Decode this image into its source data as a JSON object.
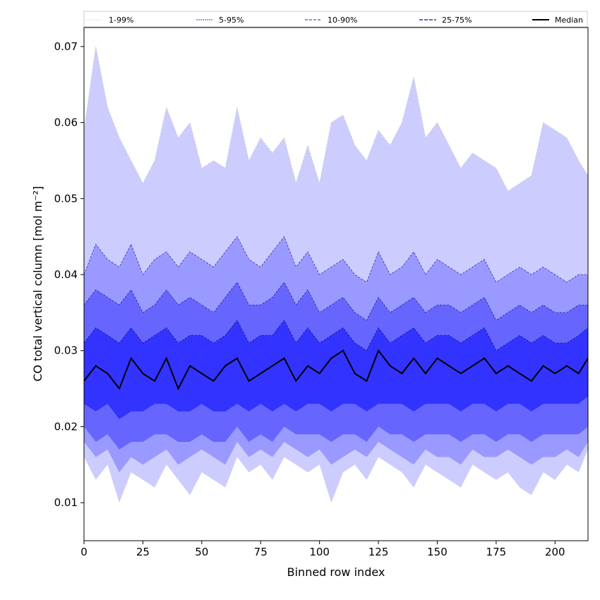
{
  "chart_data": {
    "type": "area",
    "title": "",
    "xlabel": "Binned row index",
    "ylabel": "CO total vertical column [mol m⁻²]",
    "xlim": [
      0,
      214
    ],
    "ylim": [
      0.005,
      0.0725
    ],
    "xticks": [
      0,
      25,
      50,
      75,
      100,
      125,
      150,
      175,
      200
    ],
    "yticks": [
      0.01,
      0.02,
      0.03,
      0.04,
      0.05,
      0.06,
      0.07
    ],
    "xtick_labels": [
      "0",
      "25",
      "50",
      "75",
      "100",
      "125",
      "150",
      "175",
      "200"
    ],
    "ytick_labels": [
      "0.01",
      "0.02",
      "0.03",
      "0.04",
      "0.05",
      "0.06",
      "0.07"
    ],
    "grid": false,
    "legend_position": "top",
    "x": [
      0,
      5,
      10,
      15,
      20,
      25,
      30,
      35,
      40,
      45,
      50,
      55,
      60,
      65,
      70,
      75,
      80,
      85,
      90,
      95,
      100,
      105,
      110,
      115,
      120,
      125,
      130,
      135,
      140,
      145,
      150,
      155,
      160,
      165,
      170,
      175,
      180,
      185,
      190,
      195,
      200,
      205,
      210,
      214
    ],
    "series": [
      {
        "name": "1-99%",
        "color": "#ccccff",
        "line": "#cfcfcf",
        "upper": [
          0.059,
          0.07,
          0.062,
          0.058,
          0.055,
          0.052,
          0.055,
          0.062,
          0.058,
          0.06,
          0.054,
          0.055,
          0.054,
          0.062,
          0.055,
          0.058,
          0.056,
          0.058,
          0.052,
          0.057,
          0.052,
          0.06,
          0.061,
          0.057,
          0.055,
          0.059,
          0.057,
          0.06,
          0.066,
          0.058,
          0.06,
          0.057,
          0.054,
          0.056,
          0.055,
          0.054,
          0.051,
          0.052,
          0.053,
          0.06,
          0.059,
          0.058,
          0.055,
          0.053
        ],
        "lower": [
          0.016,
          0.013,
          0.015,
          0.01,
          0.014,
          0.013,
          0.012,
          0.015,
          0.013,
          0.011,
          0.014,
          0.013,
          0.012,
          0.016,
          0.014,
          0.015,
          0.013,
          0.016,
          0.015,
          0.014,
          0.015,
          0.01,
          0.014,
          0.015,
          0.013,
          0.016,
          0.015,
          0.014,
          0.012,
          0.015,
          0.014,
          0.013,
          0.012,
          0.015,
          0.014,
          0.013,
          0.014,
          0.012,
          0.011,
          0.014,
          0.013,
          0.015,
          0.014,
          0.017
        ]
      },
      {
        "name": "5-95%",
        "color": "#9999ff",
        "line": "#3333aa",
        "upper": [
          0.04,
          0.044,
          0.042,
          0.041,
          0.044,
          0.04,
          0.042,
          0.043,
          0.041,
          0.043,
          0.042,
          0.041,
          0.043,
          0.045,
          0.042,
          0.041,
          0.043,
          0.045,
          0.041,
          0.043,
          0.04,
          0.041,
          0.042,
          0.04,
          0.039,
          0.043,
          0.04,
          0.041,
          0.043,
          0.04,
          0.042,
          0.041,
          0.04,
          0.041,
          0.042,
          0.039,
          0.04,
          0.041,
          0.04,
          0.041,
          0.04,
          0.039,
          0.04,
          0.04
        ],
        "lower": [
          0.018,
          0.016,
          0.017,
          0.014,
          0.016,
          0.015,
          0.016,
          0.017,
          0.015,
          0.016,
          0.017,
          0.016,
          0.015,
          0.018,
          0.016,
          0.017,
          0.016,
          0.018,
          0.017,
          0.016,
          0.017,
          0.015,
          0.016,
          0.017,
          0.016,
          0.018,
          0.017,
          0.016,
          0.015,
          0.017,
          0.016,
          0.016,
          0.015,
          0.017,
          0.016,
          0.016,
          0.017,
          0.016,
          0.015,
          0.016,
          0.016,
          0.017,
          0.016,
          0.018
        ]
      },
      {
        "name": "10-90%",
        "color": "#6666ff",
        "line": "#222299",
        "upper": [
          0.036,
          0.038,
          0.037,
          0.036,
          0.038,
          0.035,
          0.036,
          0.038,
          0.036,
          0.037,
          0.036,
          0.035,
          0.037,
          0.039,
          0.036,
          0.036,
          0.037,
          0.039,
          0.036,
          0.038,
          0.035,
          0.036,
          0.037,
          0.035,
          0.034,
          0.037,
          0.035,
          0.036,
          0.037,
          0.035,
          0.036,
          0.036,
          0.035,
          0.036,
          0.037,
          0.034,
          0.035,
          0.036,
          0.035,
          0.036,
          0.035,
          0.035,
          0.036,
          0.036
        ],
        "lower": [
          0.02,
          0.018,
          0.019,
          0.017,
          0.018,
          0.018,
          0.019,
          0.019,
          0.018,
          0.018,
          0.019,
          0.018,
          0.018,
          0.02,
          0.018,
          0.019,
          0.018,
          0.02,
          0.019,
          0.019,
          0.019,
          0.018,
          0.019,
          0.019,
          0.018,
          0.02,
          0.019,
          0.019,
          0.018,
          0.019,
          0.019,
          0.019,
          0.018,
          0.019,
          0.019,
          0.018,
          0.019,
          0.019,
          0.018,
          0.019,
          0.019,
          0.019,
          0.019,
          0.02
        ]
      },
      {
        "name": "25-75%",
        "color": "#3333ff",
        "line": "#111188",
        "upper": [
          0.031,
          0.033,
          0.032,
          0.031,
          0.033,
          0.031,
          0.032,
          0.033,
          0.031,
          0.032,
          0.032,
          0.031,
          0.032,
          0.034,
          0.031,
          0.032,
          0.032,
          0.034,
          0.031,
          0.033,
          0.031,
          0.032,
          0.033,
          0.031,
          0.03,
          0.033,
          0.031,
          0.032,
          0.033,
          0.031,
          0.032,
          0.032,
          0.031,
          0.032,
          0.033,
          0.03,
          0.031,
          0.032,
          0.031,
          0.032,
          0.031,
          0.031,
          0.032,
          0.033
        ],
        "lower": [
          0.023,
          0.022,
          0.023,
          0.021,
          0.022,
          0.022,
          0.023,
          0.023,
          0.022,
          0.022,
          0.023,
          0.022,
          0.022,
          0.023,
          0.022,
          0.023,
          0.022,
          0.023,
          0.022,
          0.023,
          0.023,
          0.022,
          0.023,
          0.023,
          0.022,
          0.023,
          0.023,
          0.023,
          0.022,
          0.023,
          0.023,
          0.023,
          0.022,
          0.023,
          0.023,
          0.022,
          0.023,
          0.023,
          0.022,
          0.023,
          0.023,
          0.023,
          0.023,
          0.024
        ]
      },
      {
        "name": "Median",
        "color": "#000000",
        "values": [
          0.026,
          0.028,
          0.027,
          0.025,
          0.029,
          0.027,
          0.026,
          0.029,
          0.025,
          0.028,
          0.027,
          0.026,
          0.028,
          0.029,
          0.026,
          0.027,
          0.028,
          0.029,
          0.026,
          0.028,
          0.027,
          0.029,
          0.03,
          0.027,
          0.026,
          0.03,
          0.028,
          0.027,
          0.029,
          0.027,
          0.029,
          0.028,
          0.027,
          0.028,
          0.029,
          0.027,
          0.028,
          0.027,
          0.026,
          0.028,
          0.027,
          0.028,
          0.027,
          0.029
        ]
      }
    ]
  }
}
